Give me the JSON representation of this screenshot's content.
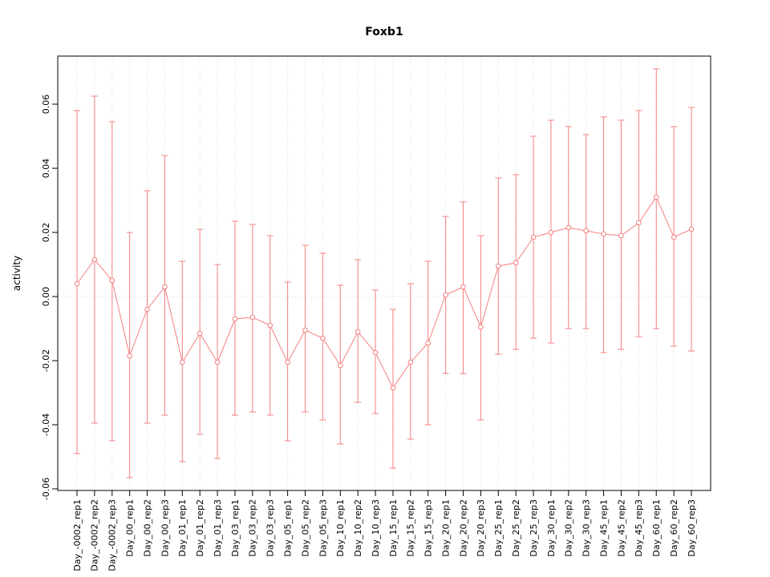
{
  "chart_data": {
    "type": "line",
    "title": "Foxb1",
    "xlabel": "",
    "ylabel": "activity",
    "ylim": [
      -0.0605,
      0.075
    ],
    "yticks": [
      -0.06,
      -0.04,
      -0.02,
      0.0,
      0.02,
      0.04,
      0.06
    ],
    "ytick_labels": [
      "-0.06",
      "-0.04",
      "-0.02",
      "0.00",
      "0.02",
      "0.04",
      "0.06"
    ],
    "grid": "dotted vertical gridline at each category; dotted horizontal line at y=0",
    "legend": "none",
    "point_style": "open-circle",
    "error_bars": true,
    "categories": [
      "Day_-0002_rep1",
      "Day_-0002_rep2",
      "Day_-0002_rep3",
      "Day_00_rep1",
      "Day_00_rep2",
      "Day_00_rep3",
      "Day_01_rep1",
      "Day_01_rep2",
      "Day_01_rep3",
      "Day_03_rep1",
      "Day_03_rep2",
      "Day_03_rep3",
      "Day_05_rep1",
      "Day_05_rep2",
      "Day_05_rep3",
      "Day_10_rep1",
      "Day_10_rep2",
      "Day_10_rep3",
      "Day_15_rep1",
      "Day_15_rep2",
      "Day_15_rep3",
      "Day_20_rep1",
      "Day_20_rep2",
      "Day_20_rep3",
      "Day_25_rep1",
      "Day_25_rep2",
      "Day_25_rep3",
      "Day_30_rep1",
      "Day_30_rep2",
      "Day_30_rep3",
      "Day_45_rep1",
      "Day_45_rep2",
      "Day_45_rep3",
      "Day_60_rep1",
      "Day_60_rep2",
      "Day_60_rep3"
    ],
    "series": [
      {
        "name": "activity",
        "values": [
          0.004,
          0.0115,
          0.005,
          -0.0185,
          -0.004,
          0.003,
          -0.0205,
          -0.0115,
          -0.0205,
          -0.007,
          -0.0065,
          -0.009,
          -0.0205,
          -0.0105,
          -0.013,
          -0.0215,
          -0.011,
          -0.0175,
          -0.0285,
          -0.0205,
          -0.0145,
          0.0005,
          0.003,
          -0.0095,
          0.0095,
          0.0105,
          0.0185,
          0.02,
          0.0215,
          0.0205,
          0.0195,
          0.019,
          0.023,
          0.031,
          0.0185,
          0.021
        ],
        "upper": [
          0.058,
          0.0625,
          0.0545,
          0.02,
          0.033,
          0.044,
          0.011,
          0.021,
          0.01,
          0.0235,
          0.0225,
          0.019,
          0.0045,
          0.016,
          0.0135,
          0.0035,
          0.0115,
          0.002,
          -0.004,
          0.004,
          0.011,
          0.025,
          0.0295,
          0.019,
          0.037,
          0.038,
          0.05,
          0.055,
          0.053,
          0.0505,
          0.056,
          0.055,
          0.058,
          0.071,
          0.053,
          0.059
        ],
        "lower": [
          -0.049,
          -0.0395,
          -0.045,
          -0.0565,
          -0.0395,
          -0.037,
          -0.0515,
          -0.043,
          -0.0505,
          -0.037,
          -0.036,
          -0.037,
          -0.045,
          -0.036,
          -0.0385,
          -0.046,
          -0.033,
          -0.0365,
          -0.0535,
          -0.0445,
          -0.04,
          -0.024,
          -0.024,
          -0.0385,
          -0.018,
          -0.0165,
          -0.013,
          -0.0145,
          -0.01,
          -0.01,
          -0.0175,
          -0.0165,
          -0.0125,
          -0.01,
          -0.0155,
          -0.017
        ]
      }
    ],
    "colors": {
      "series": "#f57f7f",
      "grid": "#d8d8d8",
      "axis": "#000000",
      "background": "#ffffff"
    }
  }
}
